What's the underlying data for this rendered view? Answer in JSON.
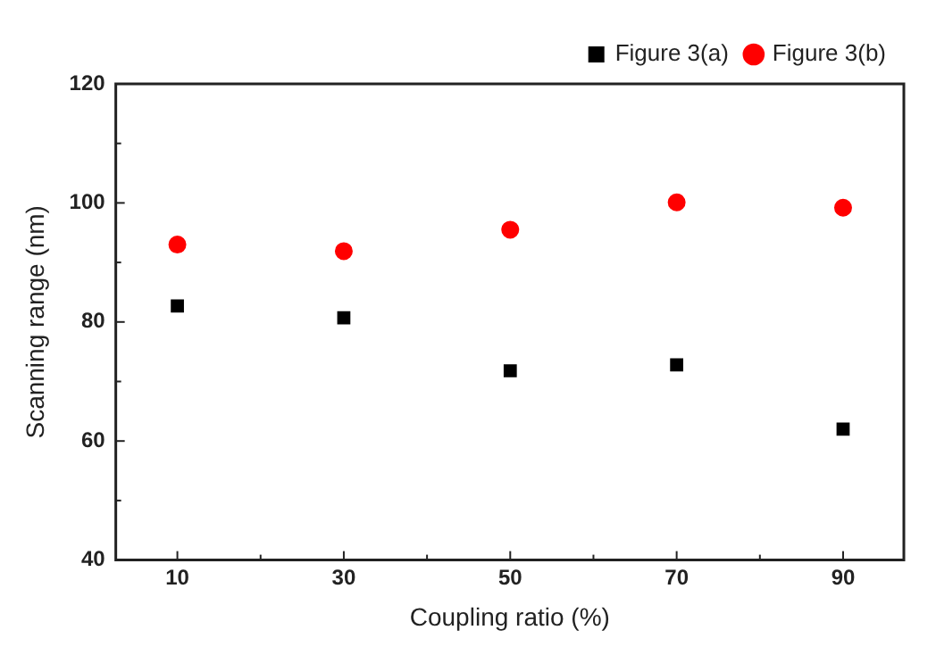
{
  "chart_data": {
    "type": "scatter",
    "xlabel": "Coupling ratio (%)",
    "ylabel": "Scanning range (nm)",
    "x": [
      10,
      30,
      50,
      70,
      90
    ],
    "series": [
      {
        "name": "Figure 3(a)",
        "color": "#000000",
        "marker": "square",
        "values": [
          82.7,
          80.7,
          71.8,
          72.8,
          62.0
        ]
      },
      {
        "name": "Figure 3(b)",
        "color": "#ff0000",
        "marker": "circle",
        "values": [
          93.0,
          91.9,
          95.5,
          100.1,
          99.2
        ]
      }
    ],
    "xlim": [
      2.6,
      97.3
    ],
    "ylim": [
      40,
      120
    ],
    "xticks": [
      10,
      {
        "value": 20,
        "label": null
      },
      30,
      {
        "value": 40,
        "label": null
      },
      50,
      {
        "value": 60,
        "label": null
      },
      70,
      {
        "value": 80,
        "label": null
      },
      90
    ],
    "yticks": [
      40,
      {
        "value": 50,
        "label": null
      },
      60,
      {
        "value": 70,
        "label": null
      },
      80,
      {
        "value": 90,
        "label": null
      },
      100,
      {
        "value": 110,
        "label": null
      },
      120
    ],
    "grid": false,
    "legend": "top right"
  }
}
